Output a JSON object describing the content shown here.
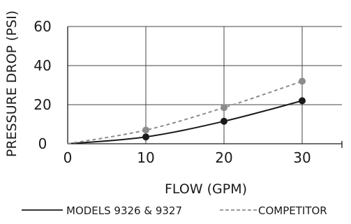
{
  "chart_data": {
    "type": "line",
    "title": "",
    "xlabel": "FLOW (GPM)",
    "ylabel": "PRESSURE DROP (PSI)",
    "xlim": [
      0,
      30
    ],
    "ylim": [
      0,
      60
    ],
    "x_ticks": [
      "0",
      "10",
      "20",
      "30"
    ],
    "y_ticks": [
      "0",
      "20",
      "40",
      "60"
    ],
    "grid": true,
    "legend_position": "bottom",
    "series": [
      {
        "name": "MODELS 9326 & 9327",
        "style": "solid",
        "color": "#1a1a1a",
        "x": [
          0,
          10,
          20,
          30
        ],
        "y": [
          0,
          3.5,
          11.5,
          22
        ]
      },
      {
        "name": "COMPETITOR",
        "style": "dashed",
        "color": "#8c8c8c",
        "x": [
          0,
          10,
          20,
          30
        ],
        "y": [
          0,
          7,
          18.5,
          32
        ]
      }
    ]
  }
}
